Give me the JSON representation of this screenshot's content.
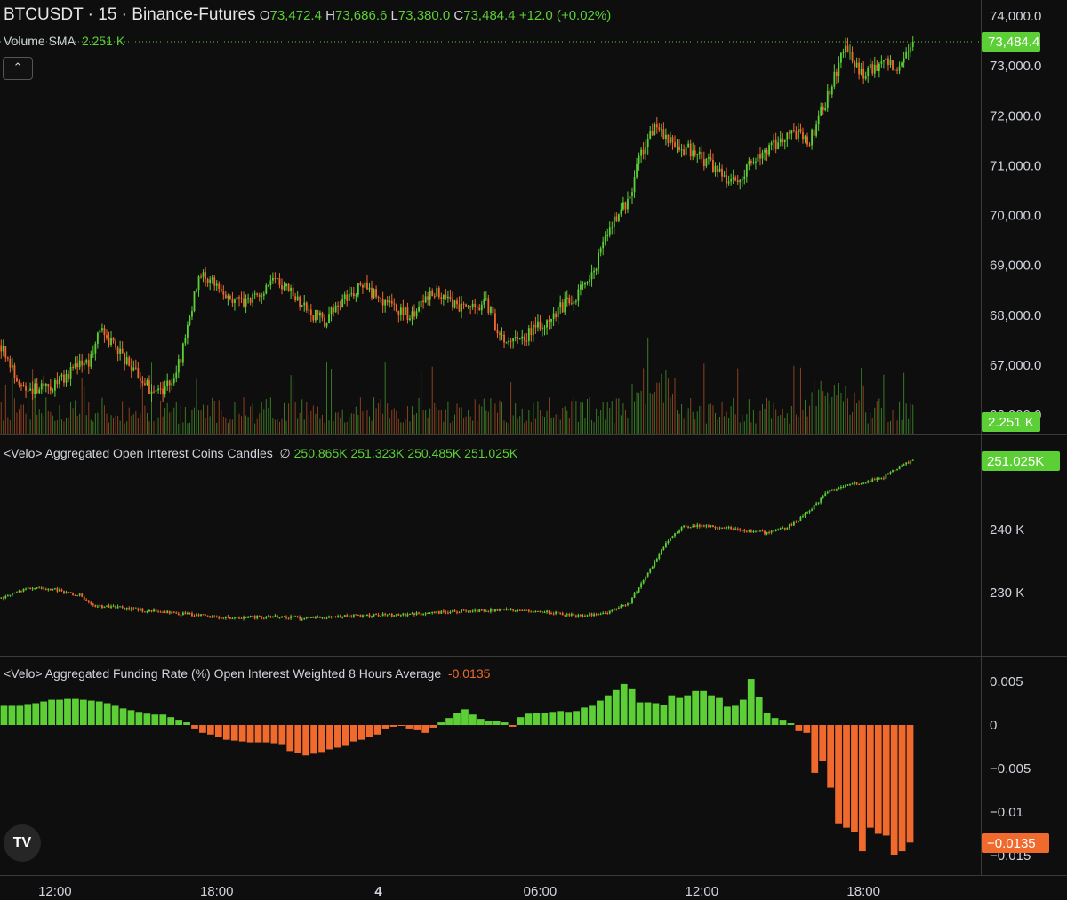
{
  "header": {
    "symbol": "BTCUSDT · 15 · Binance-Futures",
    "o_label": "O",
    "o_value": "73,472.4",
    "h_label": "H",
    "h_value": "73,686.6",
    "l_label": "L",
    "l_value": "73,380.0",
    "c_label": "C",
    "c_value": "73,484.4",
    "change": "+12.0 (+0.02%)",
    "volume_label": "Volume SMA",
    "volume_value": "2.251 K",
    "collapse_icon": "chevron-up-icon"
  },
  "oi_header": {
    "title": "<Velo> Aggregated Open Interest Coins Candles",
    "icon": "empty-set-icon",
    "o": "250.865K",
    "h": "251.323K",
    "l": "250.485K",
    "c": "251.025K"
  },
  "funding_header": {
    "title": "<Velo> Aggregated Funding Rate (%) Open Interest Weighted 8 Hours Average",
    "value": "-0.0135"
  },
  "logo_text": "TV",
  "colors": {
    "up": "#5ccf36",
    "down": "#f06a2e",
    "background": "#0e0e0e",
    "grid_line": "#2a2a2a",
    "text": "#d1d4dc"
  },
  "chart_data": [
    {
      "type": "candlestick",
      "title": "BTCUSDT · 15 · Binance-Futures",
      "price_axis_labels": [
        "74,000.0",
        "73,000.0",
        "72,000.0",
        "71,000.0",
        "70,000.0",
        "69,000.0",
        "68,000.0",
        "67,000.0",
        "66,000.0"
      ],
      "price_axis_values": [
        74000,
        73000,
        72000,
        71000,
        70000,
        69000,
        68000,
        67000,
        66000
      ],
      "ylim": [
        65700,
        74250
      ],
      "last_price_label": "73,484.4",
      "last_price": 73484.4,
      "volume_label": "2.251 K",
      "close_path": [
        [
          0,
          67400
        ],
        [
          8,
          66650
        ],
        [
          16,
          66500
        ],
        [
          24,
          66600
        ],
        [
          32,
          66900
        ],
        [
          40,
          67100
        ],
        [
          44,
          67700
        ],
        [
          52,
          67300
        ],
        [
          56,
          67050
        ],
        [
          64,
          66600
        ],
        [
          72,
          66400
        ],
        [
          80,
          67100
        ],
        [
          88,
          68800
        ],
        [
          96,
          68600
        ],
        [
          104,
          68300
        ],
        [
          112,
          68300
        ],
        [
          120,
          68700
        ],
        [
          128,
          68500
        ],
        [
          136,
          68100
        ],
        [
          144,
          67900
        ],
        [
          152,
          68300
        ],
        [
          160,
          68600
        ],
        [
          168,
          68400
        ],
        [
          176,
          68100
        ],
        [
          184,
          68000
        ],
        [
          192,
          68500
        ],
        [
          200,
          68300
        ],
        [
          208,
          68100
        ],
        [
          216,
          68250
        ],
        [
          224,
          67400
        ],
        [
          232,
          67550
        ],
        [
          240,
          67800
        ],
        [
          248,
          68100
        ],
        [
          256,
          68400
        ],
        [
          264,
          68900
        ],
        [
          272,
          69900
        ],
        [
          280,
          70300
        ],
        [
          284,
          71100
        ],
        [
          288,
          71500
        ],
        [
          292,
          71800
        ],
        [
          300,
          71400
        ],
        [
          308,
          71300
        ],
        [
          316,
          71000
        ],
        [
          324,
          70700
        ],
        [
          328,
          70600
        ],
        [
          336,
          71200
        ],
        [
          344,
          71400
        ],
        [
          352,
          71700
        ],
        [
          360,
          71500
        ],
        [
          368,
          72400
        ],
        [
          376,
          73400
        ],
        [
          384,
          72800
        ],
        [
          392,
          73100
        ],
        [
          400,
          73000
        ],
        [
          406,
          73484.4
        ]
      ]
    },
    {
      "type": "candlestick",
      "title": "<Velo> Aggregated Open Interest Coins Candles",
      "axis_labels": [
        "240 K",
        "230 K"
      ],
      "axis_values": [
        240000,
        230000
      ],
      "last_value_label": "251.025K",
      "last_value": 251025,
      "close_path": [
        [
          0,
          229200
        ],
        [
          12,
          230800
        ],
        [
          24,
          230500
        ],
        [
          36,
          229500
        ],
        [
          40,
          228000
        ],
        [
          56,
          227500
        ],
        [
          72,
          226900
        ],
        [
          88,
          226400
        ],
        [
          100,
          226000
        ],
        [
          120,
          226200
        ],
        [
          140,
          225900
        ],
        [
          160,
          226400
        ],
        [
          180,
          226500
        ],
        [
          200,
          227000
        ],
        [
          220,
          227200
        ],
        [
          240,
          227100
        ],
        [
          256,
          226400
        ],
        [
          268,
          226600
        ],
        [
          280,
          228500
        ],
        [
          288,
          233000
        ],
        [
          296,
          238000
        ],
        [
          304,
          240500
        ],
        [
          316,
          240500
        ],
        [
          328,
          240000
        ],
        [
          340,
          239500
        ],
        [
          350,
          240300
        ],
        [
          360,
          243000
        ],
        [
          368,
          246000
        ],
        [
          376,
          247000
        ],
        [
          392,
          248000
        ],
        [
          400,
          250000
        ],
        [
          406,
          251025
        ]
      ]
    },
    {
      "type": "bar",
      "title": "<Velo> Aggregated Funding Rate (%) Open Interest Weighted 8 Hours Average",
      "axis_labels": [
        "0.005",
        "0",
        "−0.005",
        "−0.01",
        "−0.015"
      ],
      "axis_values": [
        0.005,
        0,
        -0.005,
        -0.01,
        -0.015
      ],
      "ylim": [
        -0.0157,
        0.0065
      ],
      "last_value_label": "−0.0135",
      "last_value": -0.0135,
      "values": [
        0.0022,
        0.0022,
        0.0022,
        0.0024,
        0.0025,
        0.0027,
        0.0029,
        0.0029,
        0.003,
        0.003,
        0.0029,
        0.0028,
        0.0027,
        0.0025,
        0.0022,
        0.0019,
        0.0017,
        0.0015,
        0.0013,
        0.0012,
        0.0012,
        0.0009,
        0.0006,
        0.0003,
        -0.0004,
        -0.0009,
        -0.0011,
        -0.0014,
        -0.0017,
        -0.0018,
        -0.0019,
        -0.002,
        -0.002,
        -0.002,
        -0.0021,
        -0.0022,
        -0.003,
        -0.0032,
        -0.0035,
        -0.0033,
        -0.0031,
        -0.0028,
        -0.0026,
        -0.0024,
        -0.0019,
        -0.0017,
        -0.0014,
        -0.0011,
        -0.0004,
        -0.0002,
        -0.0001,
        -0.0004,
        -0.0006,
        -0.0009,
        -0.0003,
        0.0003,
        0.0008,
        0.0014,
        0.0018,
        0.0012,
        0.0007,
        0.0005,
        0.0005,
        0.0003,
        -0.0002,
        0.0009,
        0.0013,
        0.0014,
        0.0014,
        0.0015,
        0.0016,
        0.0015,
        0.0016,
        0.002,
        0.0022,
        0.0028,
        0.0034,
        0.004,
        0.0047,
        0.0042,
        0.0026,
        0.0026,
        0.0025,
        0.0023,
        0.0034,
        0.0031,
        0.0034,
        0.0039,
        0.0039,
        0.0034,
        0.0031,
        0.0021,
        0.0022,
        0.0029,
        0.0053,
        0.0032,
        0.0014,
        0.0008,
        0.0006,
        0.0002,
        -0.0007,
        -0.0009,
        -0.0055,
        -0.0041,
        -0.0072,
        -0.0113,
        -0.0118,
        -0.0123,
        -0.0145,
        -0.0118,
        -0.0125,
        -0.0127,
        -0.0149,
        -0.0145,
        -0.0135
      ]
    }
  ],
  "time_axis": {
    "labels": [
      "12:00",
      "18:00",
      "4",
      "06:00",
      "12:00",
      "18:00"
    ],
    "positions": [
      24,
      96,
      168,
      240,
      312,
      384
    ],
    "bold_index": 2
  }
}
